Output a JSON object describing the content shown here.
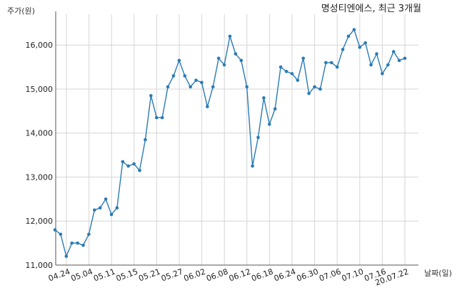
{
  "chart_data": {
    "type": "line",
    "title": "명성티엔에스, 최근 3개월",
    "ylabel": "주가(원)",
    "xlabel": "날짜(일)",
    "ylim": [
      11000,
      16700
    ],
    "yticks": [
      11000,
      12000,
      13000,
      14000,
      15000,
      16000
    ],
    "ytick_labels": [
      "11,000",
      "12,000",
      "13,000",
      "14,000",
      "15,000",
      "16,000"
    ],
    "xtick_labels": [
      "04.24",
      "05.04",
      "05.11",
      "05.15",
      "05.21",
      "05.27",
      "06.02",
      "06.08",
      "06.12",
      "06.18",
      "06.24",
      "06.30",
      "07.06",
      "07.10",
      "07.16",
      "20.07.22"
    ],
    "grid": true,
    "series": [
      {
        "color": "#2a7bb5",
        "values": [
          11800,
          11700,
          11200,
          11500,
          11500,
          11450,
          11700,
          12250,
          12300,
          12500,
          12150,
          12300,
          13350,
          13250,
          13300,
          13150,
          13850,
          14850,
          14350,
          14350,
          15050,
          15300,
          15650,
          15300,
          15050,
          15200,
          15150,
          14600,
          15050,
          15700,
          15550,
          16200,
          15800,
          15650,
          15050,
          13250,
          13900,
          14800,
          14200,
          14550,
          15500,
          15400,
          15350,
          15200,
          15700,
          14900,
          15050,
          15000,
          15600,
          15600,
          15500,
          15900,
          16200,
          16350,
          15950,
          16050,
          15550,
          15800,
          15350,
          15550,
          15850,
          15650,
          15700
        ]
      }
    ]
  }
}
